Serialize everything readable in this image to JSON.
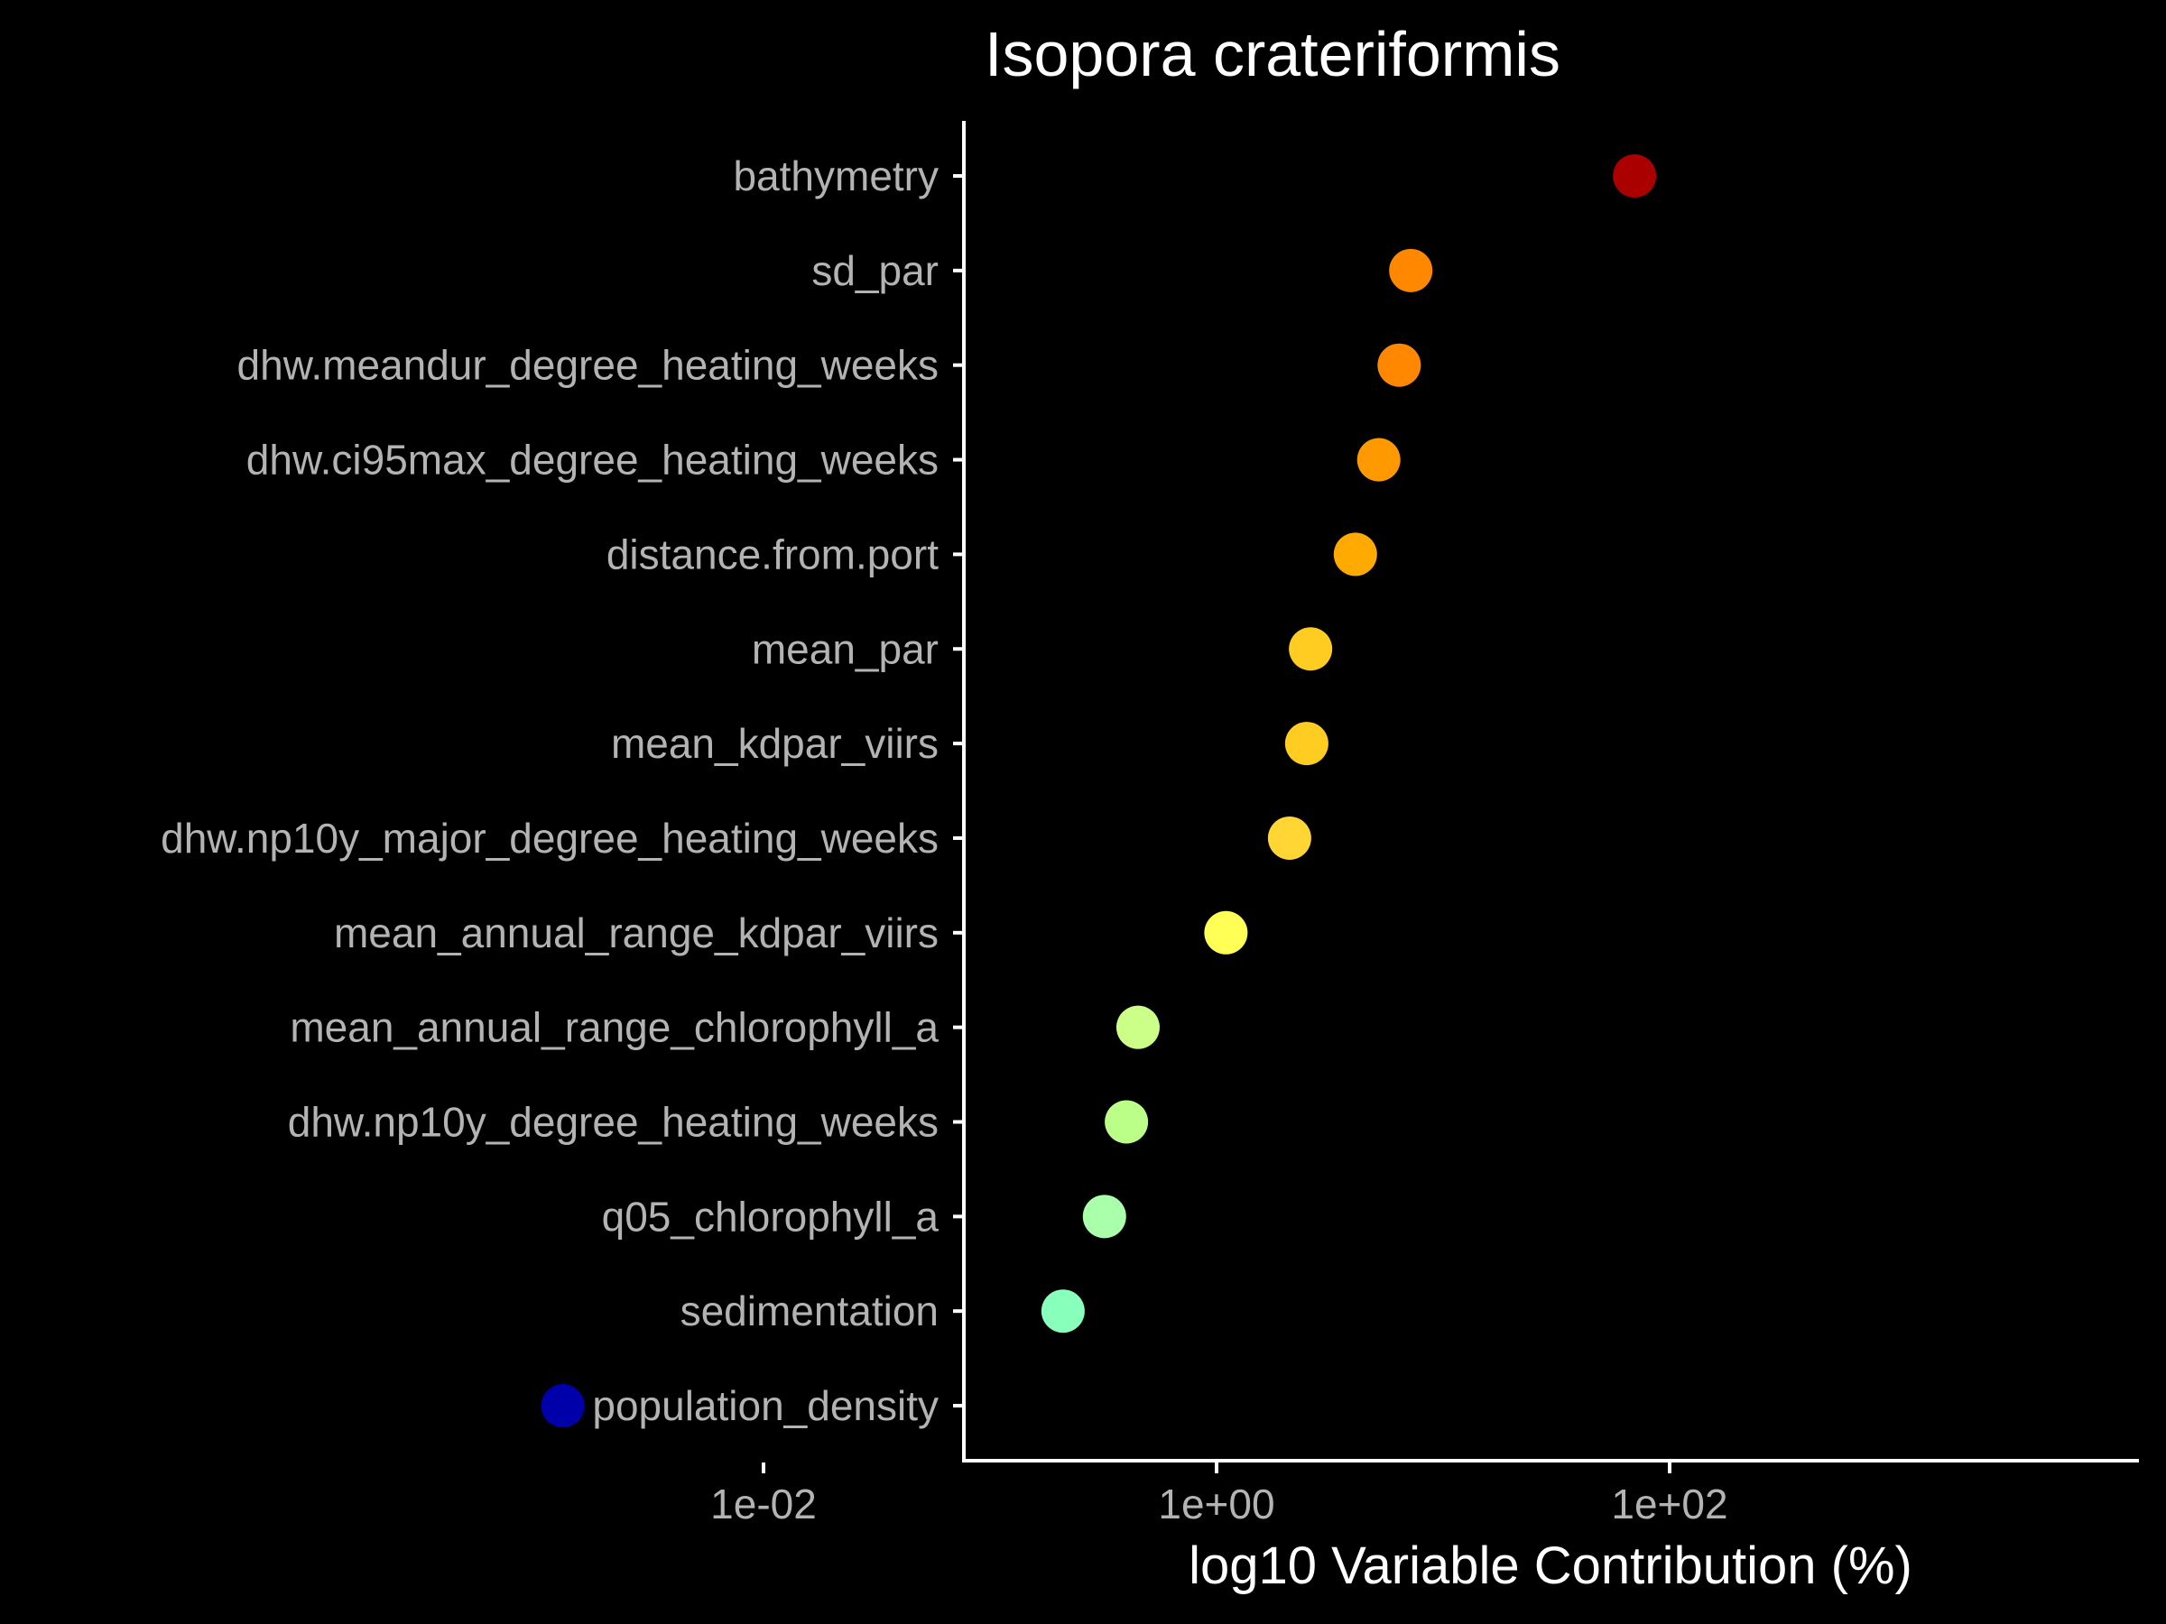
{
  "chart_data": {
    "type": "scatter",
    "title": "Isopora crateriformis",
    "xlabel": "log10 Variable Contribution (%)",
    "ylabel": "",
    "x_scale": "log10",
    "xlim": [
      0.001,
      120
    ],
    "x_ticks": [
      {
        "value": 0.01,
        "label": "1e-02"
      },
      {
        "value": 1,
        "label": "1e+00"
      },
      {
        "value": 100,
        "label": "1e+02"
      }
    ],
    "grid": false,
    "legend": "none",
    "categories": [
      "bathymetry",
      "sd_par",
      "dhw.meandur_degree_heating_weeks",
      "dhw.ci95max_degree_heating_weeks",
      "distance.from.port",
      "mean_par",
      "mean_kdpar_viirs",
      "dhw.np10y_major_degree_heating_weeks",
      "mean_annual_range_kdpar_viirs",
      "mean_annual_range_chlorophyll_a",
      "dhw.np10y_degree_heating_weeks",
      "q05_chlorophyll_a",
      "sedimentation",
      "population_density"
    ],
    "values": [
      70,
      7.2,
      6.4,
      5.2,
      4.1,
      2.6,
      2.5,
      2.1,
      1.1,
      0.45,
      0.4,
      0.32,
      0.21,
      0.0013
    ],
    "colors": [
      "#aa0000",
      "#ff8800",
      "#ff8800",
      "#ff9900",
      "#ffaa00",
      "#ffcc22",
      "#ffcc22",
      "#ffd633",
      "#ffff55",
      "#ccff88",
      "#bbff88",
      "#aaffaa",
      "#88ffbb",
      "#0000aa"
    ]
  }
}
